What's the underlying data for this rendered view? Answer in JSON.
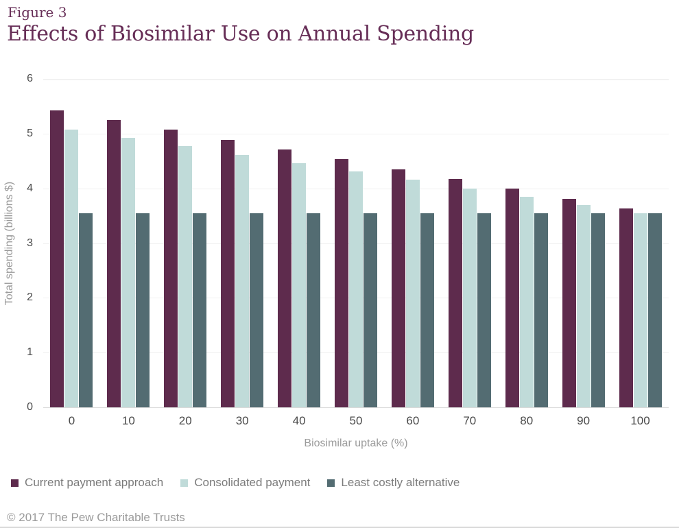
{
  "figure_label": "Figure 3",
  "title": "Effects of Biosimilar Use on Annual Spending",
  "footer": "© 2017 The Pew Charitable Trusts",
  "colors": {
    "title_maroon": "#662d56",
    "series_current": "#5e2b4d",
    "series_consolidated": "#c0dbd9",
    "series_least_costly": "#536c72",
    "gridline": "#f0f0f0",
    "axis_line": "#dadada",
    "tick_text": "#4a4a4a",
    "axis_title_text": "#9b9b9b",
    "legend_text": "#7b7b7b"
  },
  "chart_data": {
    "type": "bar",
    "title": "Effects of Biosimilar Use on Annual Spending",
    "xlabel": "Biosimilar uptake (%)",
    "ylabel": "Total spending (billions $)",
    "categories": [
      "0",
      "10",
      "20",
      "30",
      "40",
      "50",
      "60",
      "70",
      "80",
      "90",
      "100"
    ],
    "series": [
      {
        "name": "Current payment approach",
        "color": "#5e2b4d",
        "values": [
          5.43,
          5.25,
          5.07,
          4.89,
          4.71,
          4.53,
          4.35,
          4.17,
          3.99,
          3.81,
          3.63
        ]
      },
      {
        "name": "Consolidated payment",
        "color": "#c0dbd9",
        "values": [
          5.07,
          4.92,
          4.77,
          4.61,
          4.46,
          4.31,
          4.16,
          4.0,
          3.85,
          3.7,
          3.55
        ]
      },
      {
        "name": "Least costly alternative",
        "color": "#536c72",
        "values": [
          3.55,
          3.55,
          3.55,
          3.55,
          3.55,
          3.55,
          3.55,
          3.55,
          3.55,
          3.55,
          3.55
        ]
      }
    ],
    "ylim": [
      0,
      6
    ],
    "yticks": [
      0,
      1,
      2,
      3,
      4,
      5,
      6
    ],
    "grid": "horizontal",
    "legend_position": "bottom-left"
  }
}
